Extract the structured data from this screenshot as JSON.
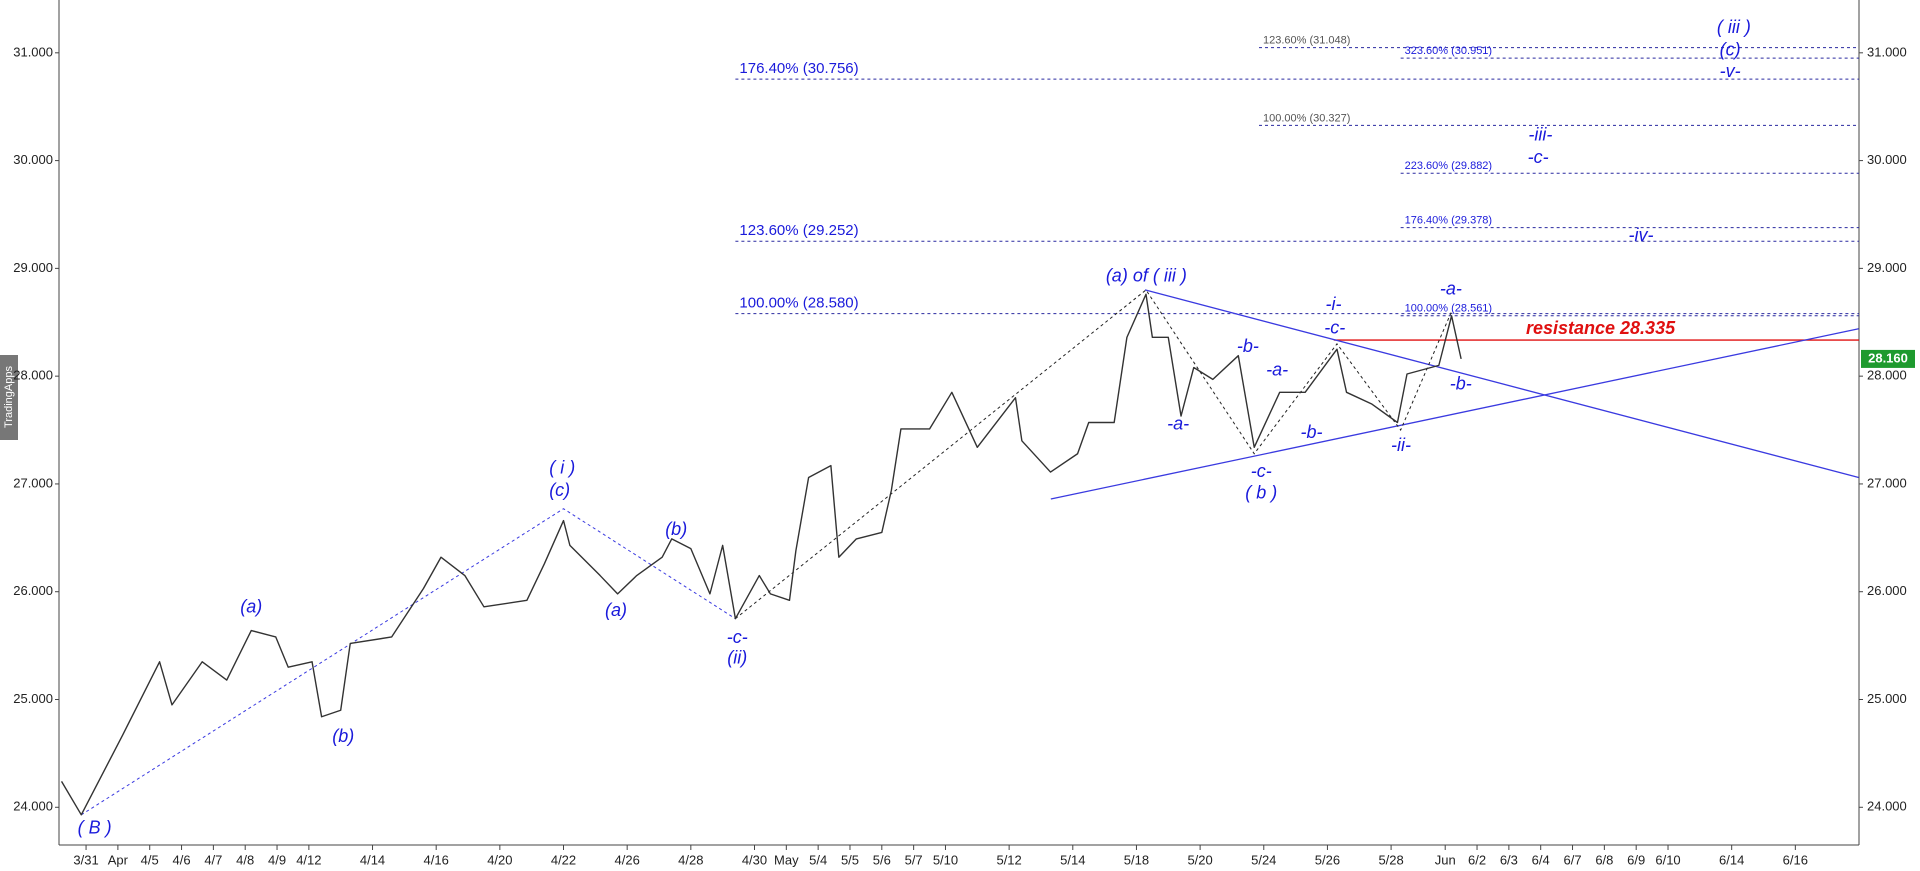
{
  "watermark": "TradingApps",
  "chart_data": {
    "type": "line",
    "color": "#333333",
    "xlim": [
      -0.85,
      55.7
    ],
    "ylim": [
      23.65,
      31.49
    ],
    "xticks": [
      {
        "value": 0,
        "label": "3/31"
      },
      {
        "value": 1,
        "label": "Apr"
      },
      {
        "value": 2,
        "label": "4/5"
      },
      {
        "value": 3,
        "label": "4/6"
      },
      {
        "value": 4,
        "label": "4/7"
      },
      {
        "value": 5,
        "label": "4/8"
      },
      {
        "value": 6,
        "label": "4/9"
      },
      {
        "value": 7,
        "label": "4/12"
      },
      {
        "value": 9,
        "label": "4/14"
      },
      {
        "value": 11,
        "label": "4/16"
      },
      {
        "value": 13,
        "label": "4/20"
      },
      {
        "value": 15,
        "label": "4/22"
      },
      {
        "value": 17,
        "label": "4/26"
      },
      {
        "value": 19,
        "label": "4/28"
      },
      {
        "value": 21,
        "label": "4/30"
      },
      {
        "value": 22,
        "label": "May"
      },
      {
        "value": 23,
        "label": "5/4"
      },
      {
        "value": 24,
        "label": "5/5"
      },
      {
        "value": 25,
        "label": "5/6"
      },
      {
        "value": 26,
        "label": "5/7"
      },
      {
        "value": 27,
        "label": "5/10"
      },
      {
        "value": 29,
        "label": "5/12"
      },
      {
        "value": 31,
        "label": "5/14"
      },
      {
        "value": 33,
        "label": "5/18"
      },
      {
        "value": 35,
        "label": "5/20"
      },
      {
        "value": 37,
        "label": "5/24"
      },
      {
        "value": 39,
        "label": "5/26"
      },
      {
        "value": 41,
        "label": "5/28"
      },
      {
        "value": 42.7,
        "label": "Jun"
      },
      {
        "value": 43.7,
        "label": "6/2"
      },
      {
        "value": 44.7,
        "label": "6/3"
      },
      {
        "value": 45.7,
        "label": "6/4"
      },
      {
        "value": 46.7,
        "label": "6/7"
      },
      {
        "value": 47.7,
        "label": "6/8"
      },
      {
        "value": 48.7,
        "label": "6/9"
      },
      {
        "value": 49.7,
        "label": "6/10"
      },
      {
        "value": 51.7,
        "label": "6/14"
      },
      {
        "value": 53.7,
        "label": "6/16"
      }
    ],
    "yticks": [
      {
        "value": 24,
        "label": "24.000"
      },
      {
        "value": 25,
        "label": "25.000"
      },
      {
        "value": 26,
        "label": "26.000"
      },
      {
        "value": 27,
        "label": "27.000"
      },
      {
        "value": 28,
        "label": "28.000"
      },
      {
        "value": 29,
        "label": "29.000"
      },
      {
        "value": 30,
        "label": "30.000"
      },
      {
        "value": 31,
        "label": "31.000"
      }
    ],
    "x": [
      -0.77,
      -0.15,
      1.15,
      2.31,
      2.7,
      3.65,
      4.42,
      5.19,
      5.96,
      6.35,
      7.1,
      7.4,
      8.0,
      8.3,
      9.6,
      10.6,
      11.15,
      11.9,
      12.5,
      13.85,
      14.4,
      15.0,
      15.2,
      16.15,
      16.7,
      17.3,
      18.1,
      18.4,
      19.0,
      19.6,
      20.0,
      20.4,
      21.15,
      21.5,
      22.1,
      22.3,
      22.7,
      23.4,
      23.65,
      24.2,
      25.0,
      25.3,
      25.6,
      26.5,
      27.2,
      28.0,
      29.2,
      29.4,
      30.3,
      31.15,
      31.5,
      32.3,
      32.7,
      33.3,
      33.5,
      34.0,
      34.4,
      34.8,
      35.4,
      36.2,
      36.7,
      37.5,
      38.3,
      39.3,
      39.6,
      40.4,
      41.2,
      41.5,
      42.5,
      42.9,
      43.2
    ],
    "values": [
      24.24,
      23.93,
      24.67,
      25.35,
      24.95,
      25.35,
      25.18,
      25.64,
      25.58,
      25.3,
      25.35,
      24.84,
      24.9,
      25.52,
      25.58,
      26.03,
      26.32,
      26.15,
      25.86,
      25.92,
      26.26,
      26.66,
      26.43,
      26.15,
      25.98,
      26.15,
      26.32,
      26.49,
      26.4,
      25.98,
      26.43,
      25.75,
      26.15,
      25.98,
      25.92,
      26.38,
      27.06,
      27.17,
      26.32,
      26.49,
      26.55,
      26.94,
      27.51,
      27.51,
      27.85,
      27.34,
      27.8,
      27.4,
      27.11,
      27.28,
      27.57,
      27.57,
      28.36,
      28.76,
      28.36,
      28.36,
      27.63,
      28.08,
      27.97,
      28.19,
      27.34,
      27.85,
      27.85,
      28.25,
      27.85,
      27.74,
      27.57,
      28.02,
      28.1,
      28.56,
      28.16
    ],
    "last_price": {
      "value": 28.16,
      "label": "28.160",
      "color": "#1e9a2e"
    },
    "levels": [
      {
        "label": "176.40% (30.756)",
        "value": 30.756,
        "x_start": 20.4,
        "size": "large",
        "color": "#1a1adb"
      },
      {
        "label": "123.60% (29.252)",
        "value": 29.252,
        "x_start": 20.4,
        "size": "large",
        "color": "#1a1adb"
      },
      {
        "label": "100.00% (28.580)",
        "value": 28.58,
        "x_start": 20.4,
        "size": "large",
        "color": "#1a1adb"
      },
      {
        "label": "123.60% (31.048)",
        "value": 31.048,
        "x_start": 36.85,
        "size": "small",
        "color": "#555555"
      },
      {
        "label": "323.60% (30.951)",
        "value": 30.951,
        "x_start": 41.3,
        "size": "small",
        "color": "#1a1adb"
      },
      {
        "label": "100.00% (30.327)",
        "value": 30.327,
        "x_start": 36.85,
        "size": "small",
        "color": "#555555"
      },
      {
        "label": "223.60% (29.882)",
        "value": 29.882,
        "x_start": 41.3,
        "size": "small",
        "color": "#1a1adb"
      },
      {
        "label": "176.40% (29.378)",
        "value": 29.378,
        "x_start": 41.3,
        "size": "small",
        "color": "#1a1adb"
      },
      {
        "label": "100.00% (28.561)",
        "value": 28.561,
        "x_start": 41.3,
        "size": "small",
        "color": "#1a1adb"
      }
    ],
    "resistance": {
      "label": "resistance 28.335",
      "value": 28.335,
      "x_start": 39.2,
      "label_x": 47.58,
      "color": "#e01010"
    },
    "trendlines": [
      {
        "x": [
          30.31,
          55.69
        ],
        "y": [
          26.86,
          28.44
        ],
        "color": "#3a3ae0",
        "dash": false
      },
      {
        "x": [
          33.27,
          55.69
        ],
        "y": [
          28.8,
          27.06
        ],
        "color": "#3a3ae0",
        "dash": false
      },
      {
        "x": [
          -0.15,
          15.0,
          20.4
        ],
        "y": [
          23.93,
          26.77,
          25.75
        ],
        "color": "#3a3ae0",
        "dash": true
      },
      {
        "x": [
          20.4,
          33.3,
          36.7,
          39.3,
          41.3,
          42.9
        ],
        "y": [
          25.75,
          28.8,
          27.28,
          28.3,
          27.5,
          28.6
        ],
        "color": "#222222",
        "dash": true
      }
    ],
    "annotation_color": "#1a1adb",
    "annotations": [
      {
        "text": "( B )",
        "x": 0.27,
        "y": 23.8
      },
      {
        "text": "(a)",
        "x": 5.19,
        "y": 25.85
      },
      {
        "text": "(b)",
        "x": 8.08,
        "y": 24.65
      },
      {
        "text": "( i )",
        "x": 14.96,
        "y": 27.14
      },
      {
        "text": "(c)",
        "x": 14.88,
        "y": 26.93
      },
      {
        "text": "(a)",
        "x": 16.65,
        "y": 25.82
      },
      {
        "text": "(b)",
        "x": 18.54,
        "y": 26.57
      },
      {
        "text": "-c-",
        "x": 20.46,
        "y": 25.57
      },
      {
        "text": "(ii)",
        "x": 20.46,
        "y": 25.38
      },
      {
        "text": "(a) of ( iii )",
        "x": 33.31,
        "y": 28.92
      },
      {
        "text": "-a-",
        "x": 34.31,
        "y": 27.55
      },
      {
        "text": "-b-",
        "x": 36.5,
        "y": 28.27
      },
      {
        "text": "-a-",
        "x": 37.42,
        "y": 28.05
      },
      {
        "text": "-c-",
        "x": 36.92,
        "y": 27.11
      },
      {
        "text": "( b )",
        "x": 36.92,
        "y": 26.91
      },
      {
        "text": "-b-",
        "x": 38.5,
        "y": 27.47
      },
      {
        "text": "-i-",
        "x": 39.19,
        "y": 28.66
      },
      {
        "text": "-c-",
        "x": 39.23,
        "y": 28.44
      },
      {
        "text": "-ii-",
        "x": 41.31,
        "y": 27.35
      },
      {
        "text": "-a-",
        "x": 42.88,
        "y": 28.8
      },
      {
        "text": "-b-",
        "x": 43.19,
        "y": 27.92
      },
      {
        "text": "-iii-",
        "x": 45.69,
        "y": 30.23
      },
      {
        "text": "-c-",
        "x": 45.62,
        "y": 30.02
      },
      {
        "text": "-iv-",
        "x": 48.85,
        "y": 29.3
      },
      {
        "text": "( iii )",
        "x": 51.77,
        "y": 31.23
      },
      {
        "text": "(c)",
        "x": 51.65,
        "y": 31.02
      },
      {
        "text": "-v-",
        "x": 51.65,
        "y": 30.82
      }
    ]
  }
}
